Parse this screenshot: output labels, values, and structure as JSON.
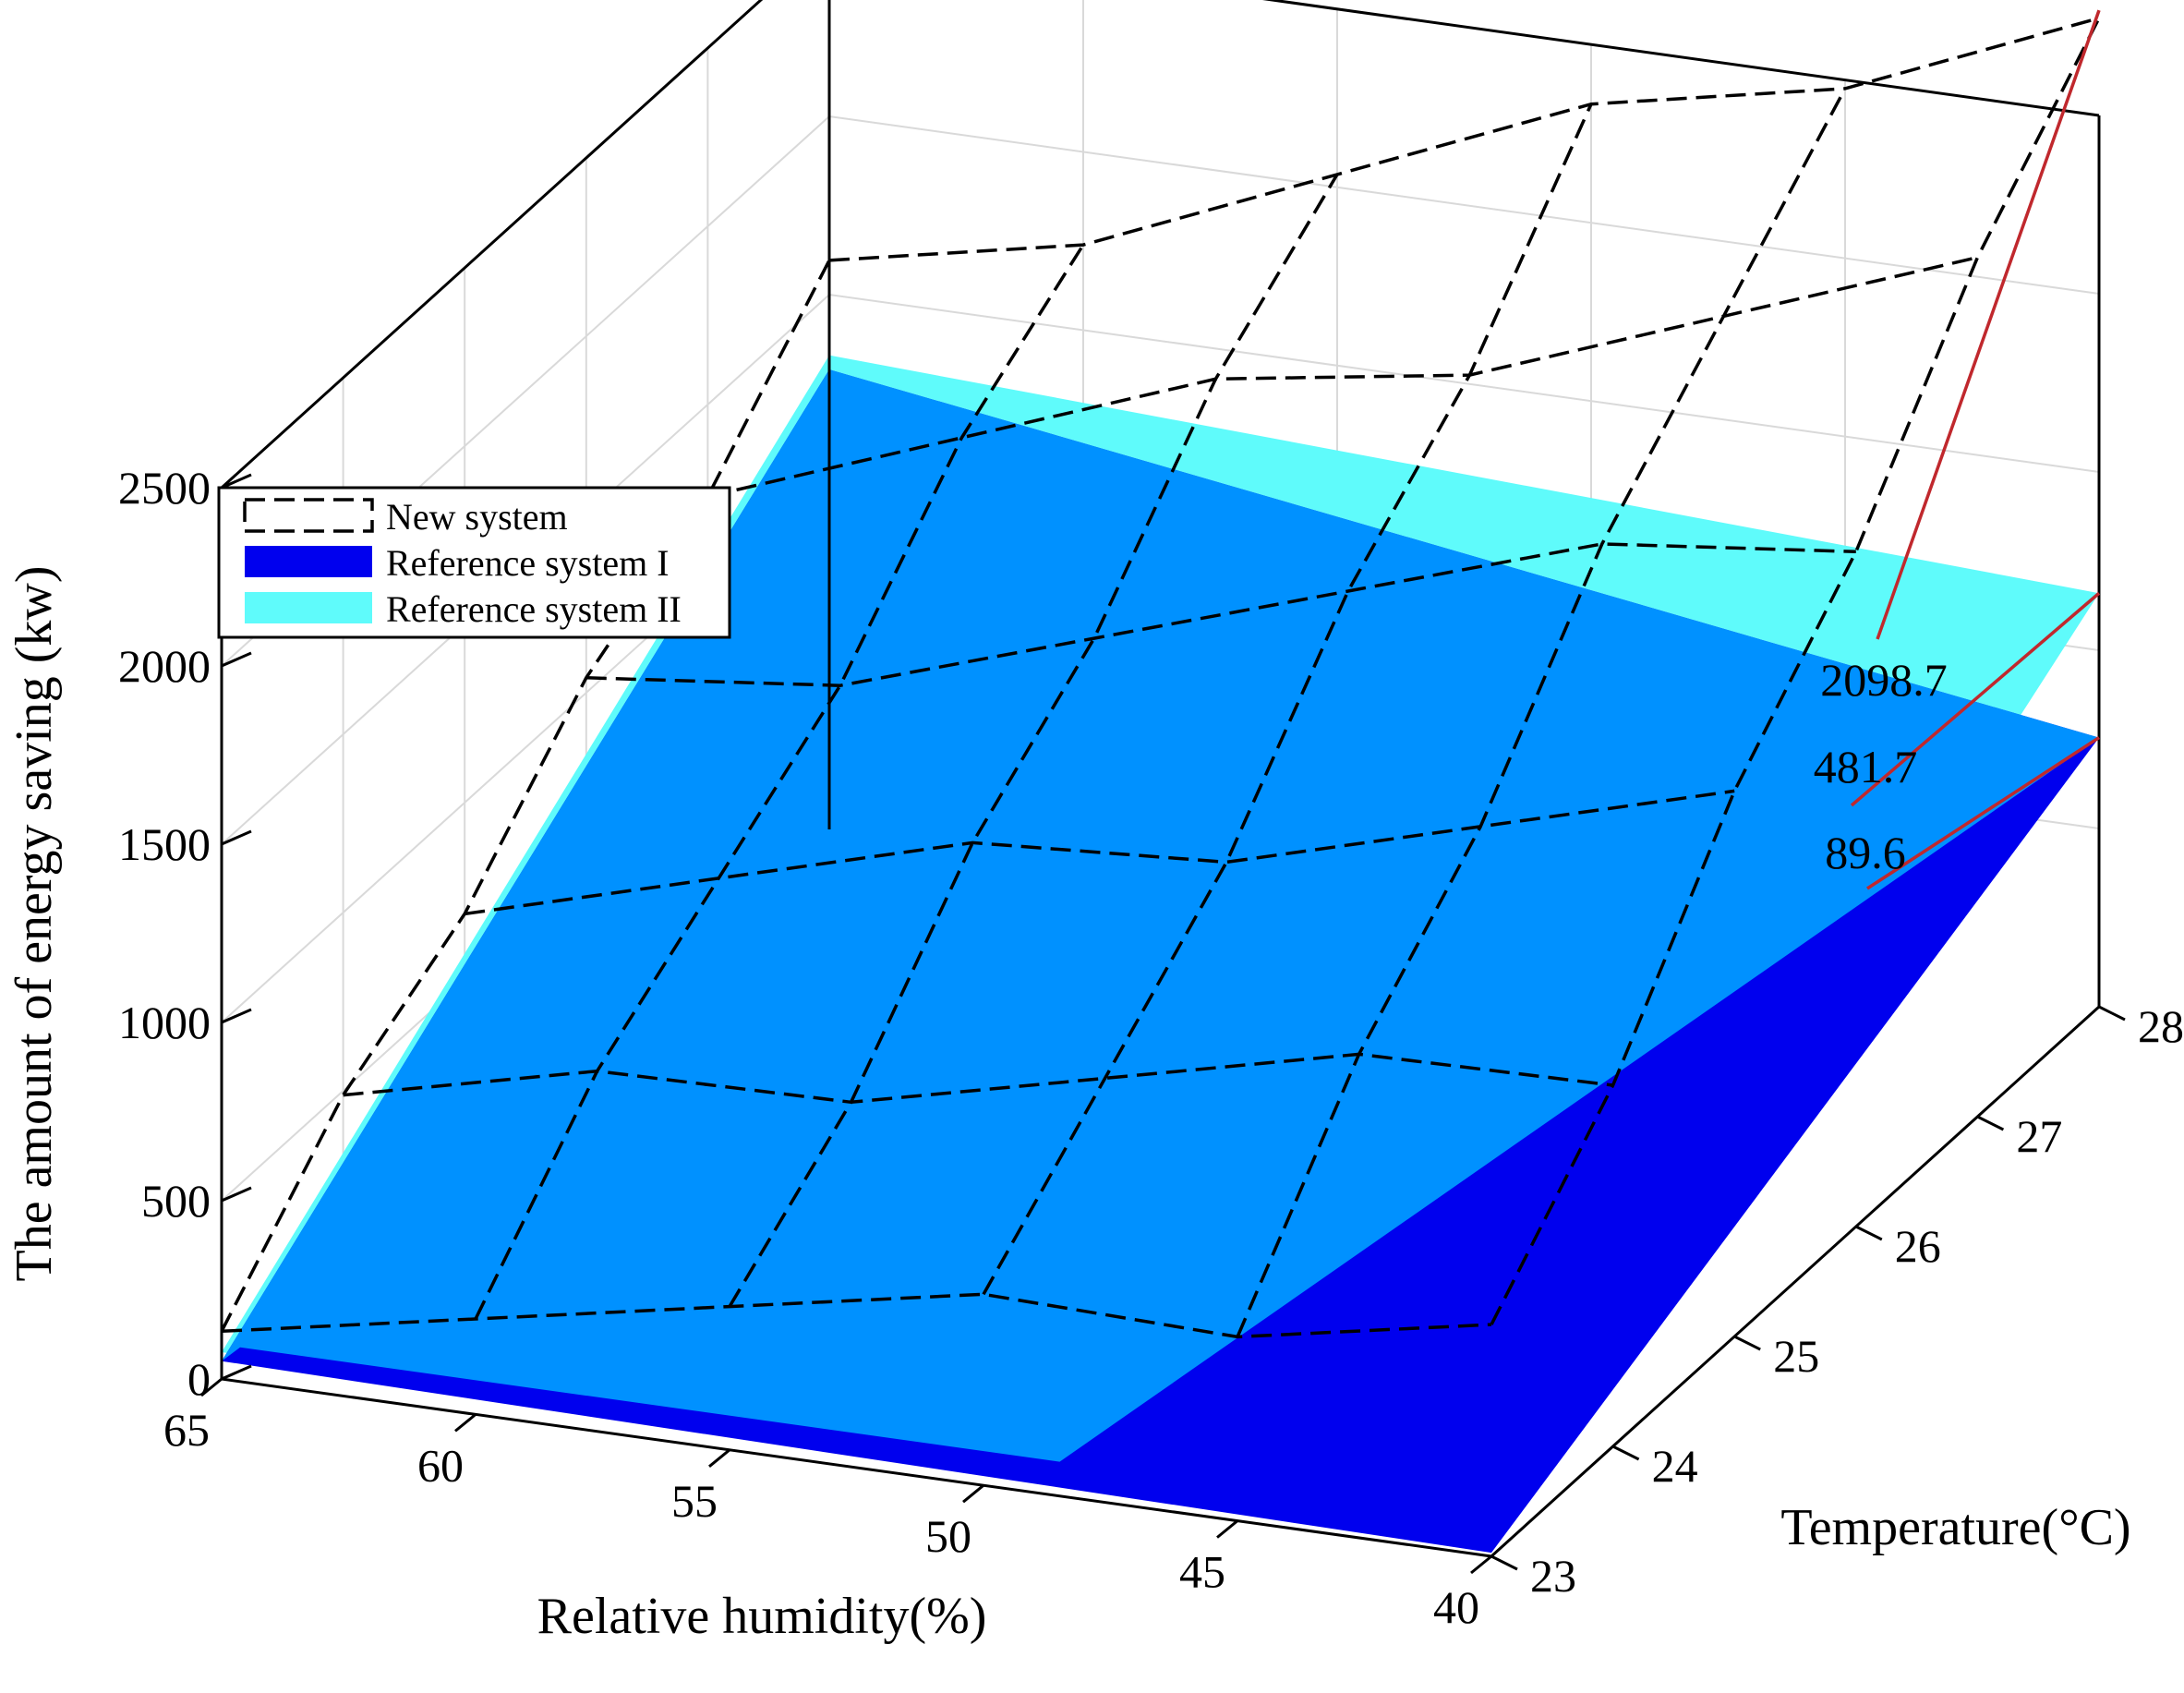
{
  "chart_data": {
    "type": "surface",
    "title": "",
    "zlabel": "The amount of energy saving (kw)",
    "xlabel": "Relative humidity(%)",
    "ylabel": "Temperature(°C)",
    "x_ticks": [
      65,
      60,
      55,
      50,
      45,
      40
    ],
    "y_ticks": [
      23,
      24,
      25,
      26,
      27,
      28
    ],
    "z_ticks": [
      0,
      500,
      1000,
      1500,
      2000,
      2500
    ],
    "xlim": [
      40,
      65
    ],
    "ylim": [
      23,
      28
    ],
    "zlim": [
      0,
      2500
    ],
    "grid": true,
    "legend_position": "top-left",
    "series": [
      {
        "name": "New system",
        "style": "dashed-wireframe",
        "color": "#000000",
        "corners": {
          "rh65_t23": 200,
          "rh40_t23": 650,
          "rh65_t28": 1530,
          "rh40_t28": 2795
        }
      },
      {
        "name": "Reference system I",
        "style": "surface",
        "color": "#0000ee",
        "corners": {
          "rh65_t23": 50,
          "rh40_t23": 10,
          "rh65_t28": 1290,
          "rh40_t28": 755
        }
      },
      {
        "name": "Reference system II",
        "style": "surface",
        "color": "#5ffbfb",
        "corners": {
          "rh65_t23": 75,
          "rh40_t23": 50,
          "rh65_t28": 1330,
          "rh40_t28": 1160
        }
      }
    ],
    "overlap_color": "#0099ff",
    "annotations": [
      {
        "text": "2098.7",
        "series": "New system"
      },
      {
        "text": "481.7",
        "series": "Reference system II"
      },
      {
        "text": "89.6",
        "series": "Reference system I"
      }
    ],
    "annotation_line_color": "#c0282d"
  }
}
